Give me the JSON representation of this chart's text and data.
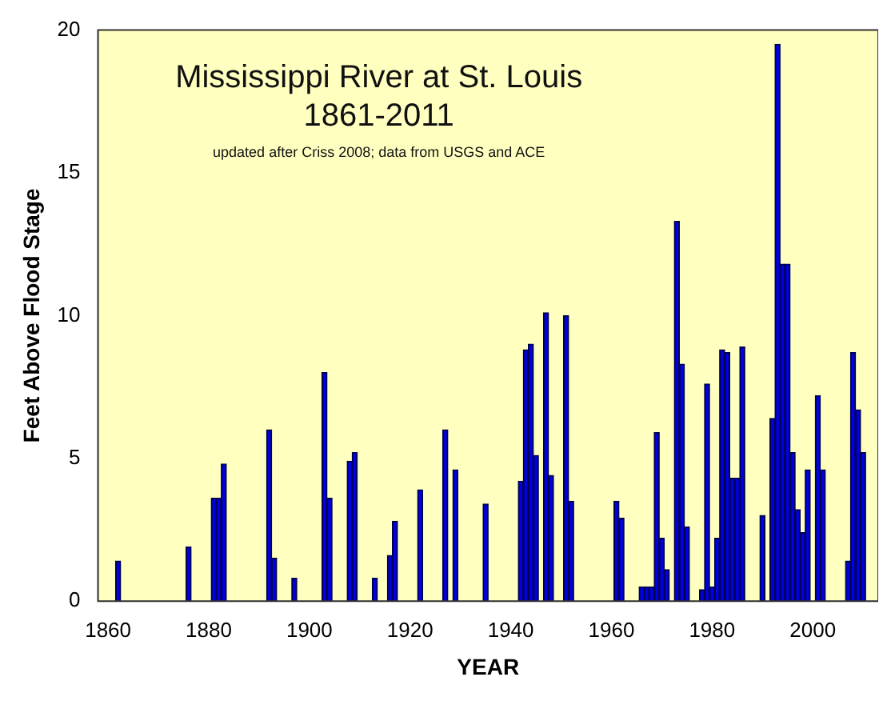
{
  "chart_data": {
    "type": "bar",
    "title": "Mississippi River at St. Louis\n1861-2011",
    "subtitle": "updated after Criss 2008; data from USGS and ACE",
    "xlabel": "YEAR",
    "ylabel": "Feet Above Flood Stage",
    "x": [
      1862,
      1876,
      1881,
      1882,
      1883,
      1892,
      1893,
      1897,
      1903,
      1904,
      1908,
      1909,
      1913,
      1916,
      1917,
      1922,
      1927,
      1929,
      1935,
      1942,
      1943,
      1944,
      1945,
      1947,
      1948,
      1951,
      1952,
      1961,
      1962,
      1966,
      1967,
      1968,
      1969,
      1970,
      1971,
      1973,
      1974,
      1975,
      1978,
      1979,
      1980,
      1981,
      1982,
      1983,
      1984,
      1985,
      1986,
      1990,
      1992,
      1993,
      1994,
      1995,
      1996,
      1997,
      1998,
      1999,
      2001,
      2002,
      2007,
      2008,
      2009,
      2010
    ],
    "values": [
      1.4,
      1.9,
      3.6,
      3.6,
      4.8,
      6.0,
      1.5,
      0.8,
      8.0,
      3.6,
      4.9,
      5.2,
      0.8,
      1.6,
      2.8,
      3.9,
      6.0,
      4.6,
      3.4,
      4.2,
      8.8,
      9.0,
      5.1,
      10.1,
      4.4,
      10.0,
      3.5,
      3.5,
      2.9,
      0.5,
      0.5,
      0.5,
      5.9,
      2.2,
      1.1,
      13.3,
      8.3,
      2.6,
      0.4,
      7.6,
      0.5,
      2.2,
      8.8,
      8.7,
      4.3,
      4.3,
      8.9,
      3.0,
      6.4,
      19.5,
      11.8,
      11.8,
      5.2,
      3.2,
      2.4,
      4.6,
      7.2,
      4.6,
      1.4,
      8.7,
      6.7,
      5.2
    ],
    "color": "#0000e0",
    "xlim": [
      1858,
      2013
    ],
    "xticks": [
      1860,
      1880,
      1900,
      1920,
      1940,
      1960,
      1980,
      2000
    ],
    "ylim": [
      0,
      20
    ],
    "yticks": [
      0,
      5,
      10,
      15,
      20
    ],
    "grid": false,
    "legend": false
  }
}
